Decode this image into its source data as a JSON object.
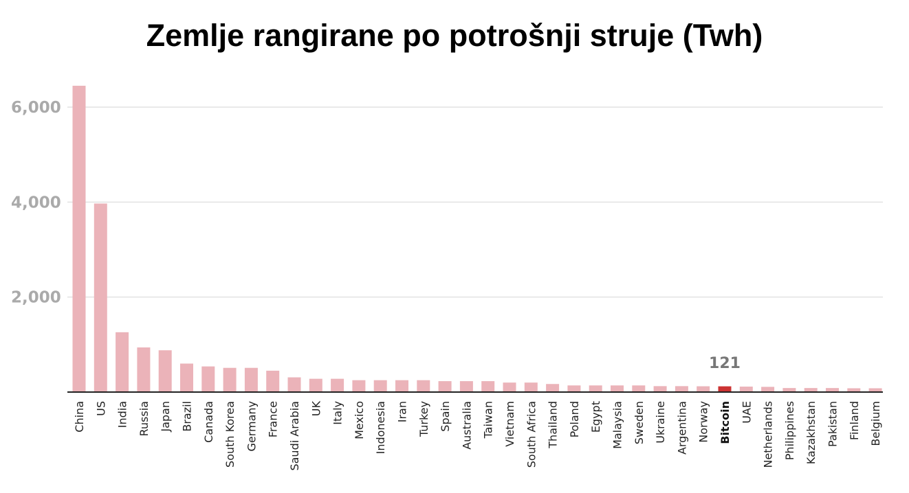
{
  "chart_data": {
    "type": "bar",
    "title": "Zemlje rangirane po potrošnji struje (Twh)",
    "categories": [
      "China",
      "US",
      "India",
      "Russia",
      "Japan",
      "Brazil",
      "Canada",
      "South Korea",
      "Germany",
      "France",
      "Saudi Arabia",
      "UK",
      "Italy",
      "Mexico",
      "Indonesia",
      "Iran",
      "Turkey",
      "Spain",
      "Australia",
      "Taiwan",
      "Vietnam",
      "South Africa",
      "Thailand",
      "Poland",
      "Egypt",
      "Malaysia",
      "Sweden",
      "Ukraine",
      "Argentina",
      "Norway",
      "Bitcoin",
      "UAE",
      "Netherlands",
      "Philippines",
      "Kazakhstan",
      "Pakistan",
      "Finland",
      "Belgium"
    ],
    "values": [
      6450,
      3970,
      1260,
      940,
      880,
      600,
      540,
      510,
      510,
      450,
      310,
      280,
      280,
      250,
      250,
      250,
      250,
      230,
      230,
      230,
      200,
      200,
      170,
      140,
      140,
      140,
      140,
      125,
      125,
      122,
      121,
      115,
      110,
      85,
      85,
      85,
      80,
      80
    ],
    "highlight": "Bitcoin",
    "data_labels": [
      {
        "category": "Bitcoin",
        "text": "121"
      }
    ],
    "yticks": [
      "2,000",
      "4,000",
      "6,000"
    ],
    "ylim": [
      0,
      6700
    ],
    "grid": true,
    "colors": {
      "bar": "#ebb3b9",
      "highlight": "#cc3333",
      "grid": "#e2e2e2",
      "axis": "#222222"
    }
  }
}
